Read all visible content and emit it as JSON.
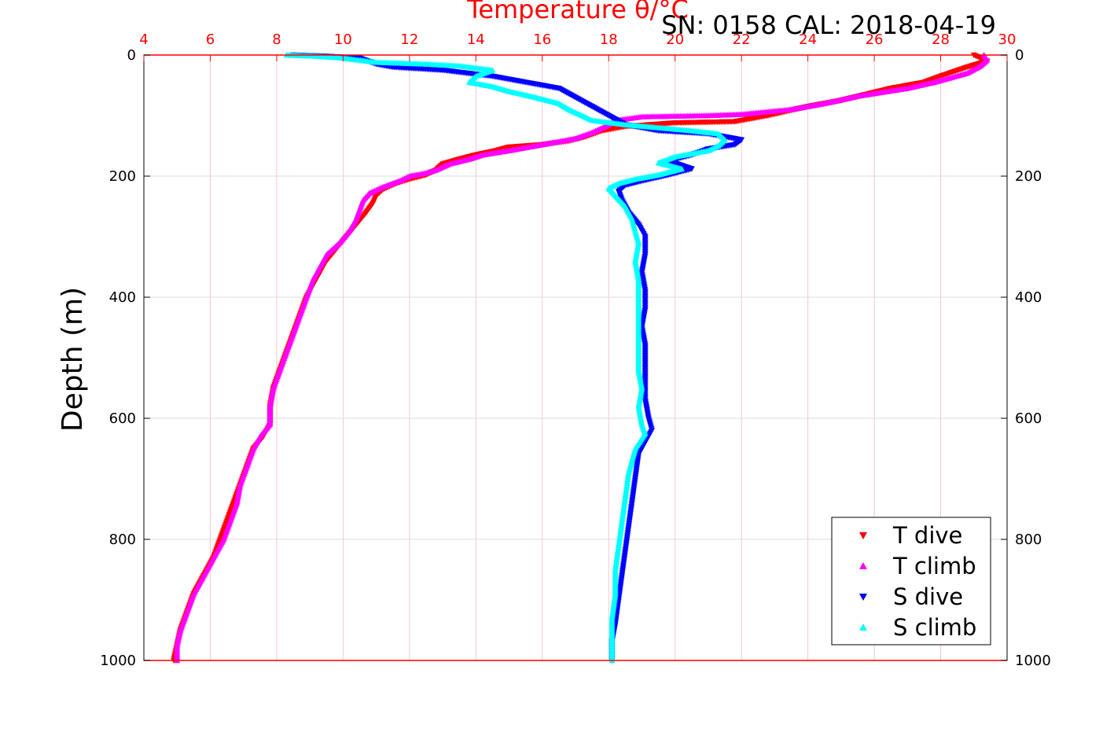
{
  "chart_data": {
    "type": "scatter",
    "title": "Temperature θ/°C",
    "annotation": "SN: 0158  CAL: 2018-04-19",
    "ylabel": "Depth (m)",
    "top_axis": {
      "label": "Temperature θ/°C",
      "range": [
        4,
        30
      ],
      "ticks": [
        "4",
        "6",
        "8",
        "10",
        "12",
        "14",
        "16",
        "18",
        "20",
        "22",
        "24",
        "26",
        "28",
        "30"
      ],
      "color": "#ff0000"
    },
    "y_axis": {
      "range": [
        0,
        1000
      ],
      "reversed": true,
      "ticks": [
        "0",
        "200",
        "400",
        "600",
        "800",
        "1000"
      ]
    },
    "grid": true,
    "legend_position": "bottom-right",
    "colors": {
      "t_dive": "#ff0000",
      "t_climb": "#ff00ff",
      "s_dive": "#0000ff",
      "s_climb": "#00ffff",
      "temp_axis": "#ff0000",
      "grid": "#dddddd"
    },
    "legend": [
      {
        "key": "t_dive",
        "label": "T dive",
        "marker": "triangle-down",
        "color": "#ff0000"
      },
      {
        "key": "t_climb",
        "label": "T climb",
        "marker": "triangle-up",
        "color": "#ff00ff"
      },
      {
        "key": "s_dive",
        "label": "S dive",
        "marker": "triangle-down",
        "color": "#0000ff"
      },
      {
        "key": "s_climb",
        "label": "S climb",
        "marker": "triangle-up",
        "color": "#00ffff"
      }
    ],
    "series": [
      {
        "key": "t_dive",
        "points": [
          [
            29.0,
            0
          ],
          [
            29.4,
            10
          ],
          [
            28.8,
            20
          ],
          [
            28.0,
            35
          ],
          [
            27.5,
            45
          ],
          [
            26.5,
            55
          ],
          [
            25.0,
            75
          ],
          [
            24.0,
            85
          ],
          [
            22.8,
            100
          ],
          [
            21.8,
            110
          ],
          [
            20.0,
            112
          ],
          [
            18.5,
            118
          ],
          [
            17.8,
            125
          ],
          [
            17.3,
            135
          ],
          [
            16.8,
            142
          ],
          [
            16.0,
            148
          ],
          [
            15.0,
            152
          ],
          [
            14.6,
            158
          ],
          [
            14.0,
            165
          ],
          [
            13.5,
            172
          ],
          [
            13.0,
            180
          ],
          [
            12.8,
            190
          ],
          [
            12.5,
            198
          ],
          [
            12.0,
            205
          ],
          [
            11.6,
            212
          ],
          [
            11.2,
            222
          ],
          [
            11.0,
            232
          ],
          [
            10.9,
            245
          ],
          [
            10.7,
            260
          ],
          [
            10.4,
            280
          ],
          [
            10.1,
            300
          ],
          [
            9.8,
            320
          ],
          [
            9.5,
            340
          ],
          [
            9.3,
            360
          ],
          [
            9.1,
            380
          ],
          [
            8.9,
            400
          ],
          [
            8.7,
            430
          ],
          [
            8.5,
            460
          ],
          [
            8.3,
            490
          ],
          [
            8.1,
            520
          ],
          [
            7.9,
            550
          ],
          [
            7.8,
            580
          ],
          [
            7.8,
            610
          ],
          [
            7.6,
            630
          ],
          [
            7.3,
            650
          ],
          [
            7.1,
            680
          ],
          [
            6.9,
            710
          ],
          [
            6.7,
            740
          ],
          [
            6.5,
            770
          ],
          [
            6.3,
            800
          ],
          [
            6.1,
            830
          ],
          [
            5.8,
            860
          ],
          [
            5.5,
            890
          ],
          [
            5.3,
            920
          ],
          [
            5.1,
            950
          ],
          [
            5.0,
            975
          ],
          [
            4.9,
            1000
          ]
        ]
      },
      {
        "key": "t_climb",
        "points": [
          [
            29.3,
            0
          ],
          [
            29.4,
            8
          ],
          [
            29.2,
            18
          ],
          [
            28.8,
            30
          ],
          [
            27.8,
            45
          ],
          [
            27.0,
            55
          ],
          [
            25.5,
            68
          ],
          [
            24.5,
            80
          ],
          [
            23.5,
            90
          ],
          [
            22.0,
            98
          ],
          [
            21.0,
            100
          ],
          [
            19.0,
            102
          ],
          [
            18.2,
            108
          ],
          [
            17.9,
            118
          ],
          [
            17.5,
            128
          ],
          [
            17.0,
            138
          ],
          [
            16.0,
            148
          ],
          [
            15.0,
            158
          ],
          [
            14.2,
            165
          ],
          [
            13.8,
            172
          ],
          [
            13.2,
            180
          ],
          [
            12.8,
            190
          ],
          [
            12.5,
            195
          ],
          [
            12.0,
            200
          ],
          [
            11.7,
            208
          ],
          [
            11.2,
            218
          ],
          [
            10.8,
            228
          ],
          [
            10.6,
            240
          ],
          [
            10.5,
            255
          ],
          [
            10.4,
            270
          ],
          [
            10.2,
            290
          ],
          [
            9.9,
            310
          ],
          [
            9.5,
            330
          ],
          [
            9.3,
            350
          ],
          [
            9.1,
            370
          ],
          [
            8.9,
            400
          ],
          [
            8.7,
            430
          ],
          [
            8.5,
            460
          ],
          [
            8.3,
            490
          ],
          [
            8.1,
            520
          ],
          [
            7.9,
            550
          ],
          [
            7.8,
            580
          ],
          [
            7.8,
            610
          ],
          [
            7.5,
            630
          ],
          [
            7.3,
            650
          ],
          [
            7.1,
            680
          ],
          [
            6.9,
            710
          ],
          [
            6.8,
            740
          ],
          [
            6.6,
            770
          ],
          [
            6.4,
            800
          ],
          [
            6.1,
            830
          ],
          [
            5.8,
            860
          ],
          [
            5.5,
            890
          ],
          [
            5.3,
            920
          ],
          [
            5.1,
            950
          ],
          [
            5.0,
            975
          ],
          [
            5.0,
            1000
          ]
        ]
      },
      {
        "key": "s_dive",
        "points": [
          [
            8.5,
            0
          ],
          [
            9.5,
            2
          ],
          [
            10.5,
            5
          ],
          [
            11.0,
            15
          ],
          [
            11.5,
            20
          ],
          [
            13.0,
            25
          ],
          [
            14.5,
            35
          ],
          [
            15.5,
            45
          ],
          [
            16.5,
            55
          ],
          [
            17.0,
            70
          ],
          [
            17.5,
            85
          ],
          [
            18.0,
            100
          ],
          [
            18.5,
            115
          ],
          [
            19.5,
            125
          ],
          [
            21.0,
            130
          ],
          [
            22.0,
            140
          ],
          [
            21.8,
            148
          ],
          [
            21.0,
            155
          ],
          [
            20.5,
            165
          ],
          [
            19.8,
            175
          ],
          [
            20.5,
            188
          ],
          [
            19.8,
            198
          ],
          [
            19.0,
            208
          ],
          [
            18.5,
            215
          ],
          [
            18.3,
            225
          ],
          [
            18.4,
            240
          ],
          [
            18.6,
            260
          ],
          [
            18.9,
            280
          ],
          [
            19.1,
            300
          ],
          [
            19.1,
            330
          ],
          [
            19.0,
            360
          ],
          [
            19.1,
            390
          ],
          [
            19.1,
            420
          ],
          [
            19.0,
            450
          ],
          [
            19.1,
            480
          ],
          [
            19.1,
            510
          ],
          [
            19.1,
            540
          ],
          [
            19.1,
            570
          ],
          [
            19.2,
            600
          ],
          [
            19.3,
            620
          ],
          [
            19.1,
            640
          ],
          [
            18.9,
            660
          ],
          [
            18.8,
            700
          ],
          [
            18.7,
            740
          ],
          [
            18.6,
            780
          ],
          [
            18.5,
            820
          ],
          [
            18.4,
            860
          ],
          [
            18.3,
            900
          ],
          [
            18.2,
            940
          ],
          [
            18.1,
            970
          ],
          [
            18.1,
            1000
          ]
        ]
      },
      {
        "key": "s_climb",
        "points": [
          [
            8.3,
            0
          ],
          [
            9.2,
            2
          ],
          [
            10.0,
            5
          ],
          [
            11.0,
            12
          ],
          [
            12.5,
            15
          ],
          [
            13.5,
            18
          ],
          [
            14.5,
            25
          ],
          [
            14.0,
            35
          ],
          [
            13.8,
            45
          ],
          [
            14.5,
            52
          ],
          [
            15.0,
            60
          ],
          [
            15.8,
            70
          ],
          [
            16.5,
            80
          ],
          [
            16.8,
            90
          ],
          [
            17.2,
            100
          ],
          [
            17.5,
            108
          ],
          [
            18.5,
            115
          ],
          [
            19.5,
            120
          ],
          [
            20.5,
            125
          ],
          [
            21.3,
            130
          ],
          [
            21.5,
            140
          ],
          [
            21.3,
            150
          ],
          [
            21.0,
            158
          ],
          [
            20.0,
            168
          ],
          [
            19.5,
            178
          ],
          [
            20.2,
            188
          ],
          [
            19.5,
            198
          ],
          [
            18.8,
            205
          ],
          [
            18.3,
            212
          ],
          [
            18.0,
            220
          ],
          [
            18.2,
            232
          ],
          [
            18.5,
            250
          ],
          [
            18.7,
            270
          ],
          [
            18.8,
            290
          ],
          [
            18.9,
            310
          ],
          [
            18.8,
            340
          ],
          [
            18.9,
            370
          ],
          [
            18.9,
            400
          ],
          [
            18.9,
            430
          ],
          [
            18.9,
            460
          ],
          [
            18.9,
            490
          ],
          [
            18.9,
            520
          ],
          [
            19.0,
            550
          ],
          [
            18.9,
            580
          ],
          [
            19.0,
            610
          ],
          [
            19.1,
            625
          ],
          [
            18.8,
            650
          ],
          [
            18.6,
            690
          ],
          [
            18.5,
            730
          ],
          [
            18.4,
            770
          ],
          [
            18.3,
            810
          ],
          [
            18.2,
            850
          ],
          [
            18.2,
            890
          ],
          [
            18.1,
            930
          ],
          [
            18.1,
            970
          ],
          [
            18.1,
            1000
          ]
        ]
      }
    ]
  }
}
